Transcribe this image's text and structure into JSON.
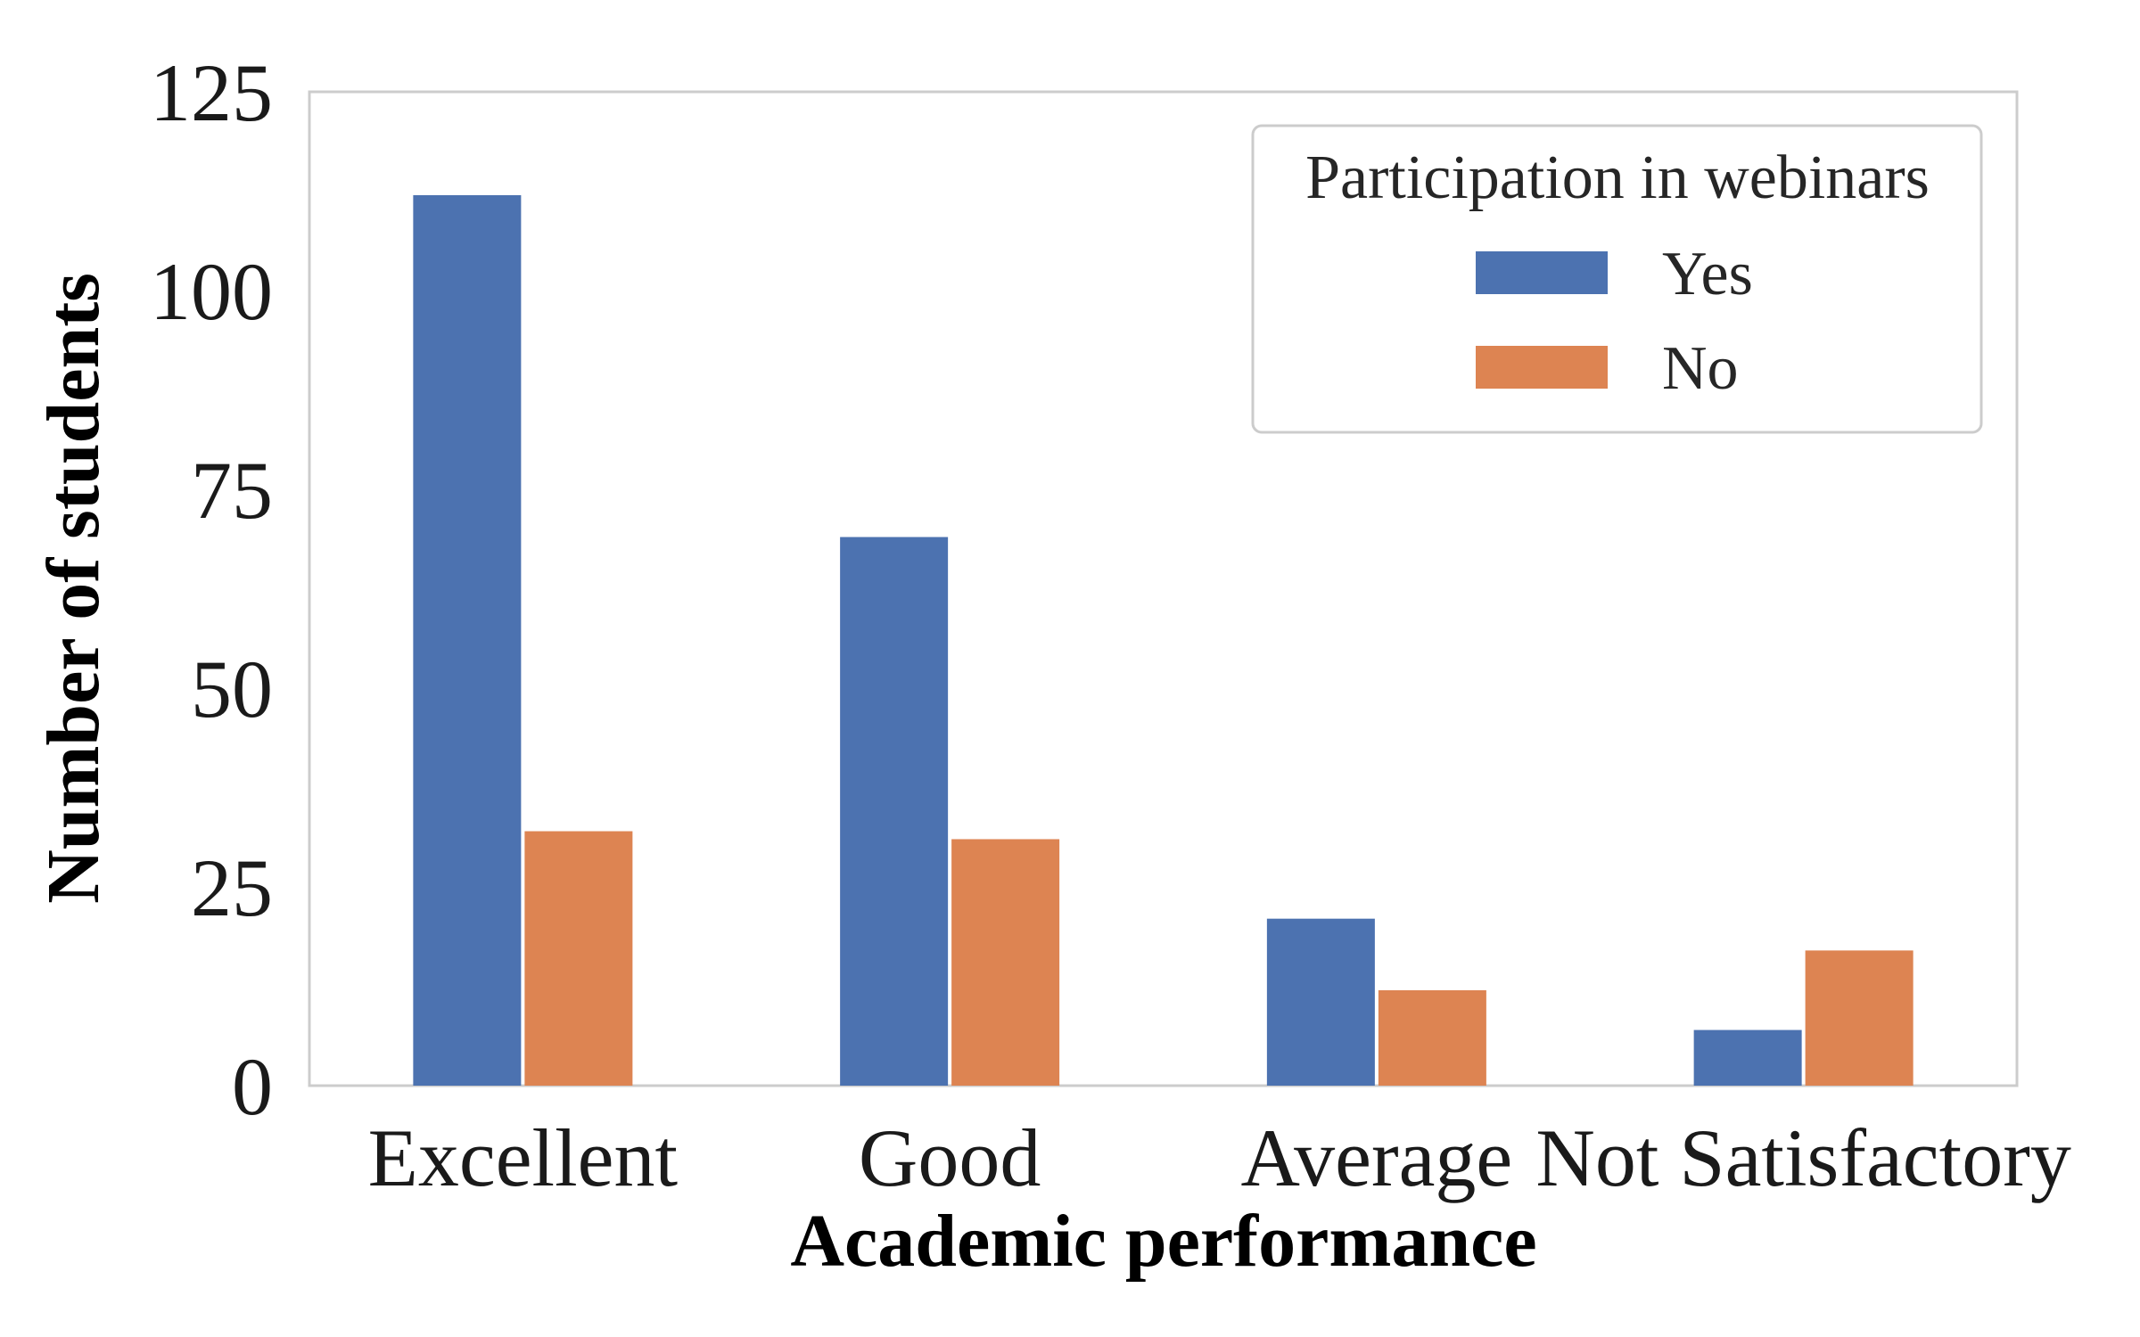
{
  "chart_data": {
    "type": "bar",
    "xlabel": "Academic performance",
    "ylabel": "Number of students",
    "categories": [
      "Excellent",
      "Good",
      "Average",
      "Not Satisfactory"
    ],
    "series": [
      {
        "name": "Yes",
        "values": [
          112,
          69,
          21,
          7
        ],
        "color": "#4c72b0"
      },
      {
        "name": "No",
        "values": [
          32,
          31,
          12,
          17
        ],
        "color": "#dd8452"
      }
    ],
    "ylim": [
      0,
      125
    ],
    "yticks": [
      0,
      25,
      50,
      75,
      100,
      125
    ],
    "grid": false,
    "legend": {
      "title": "Participation in webinars",
      "placement": "top-right"
    }
  }
}
